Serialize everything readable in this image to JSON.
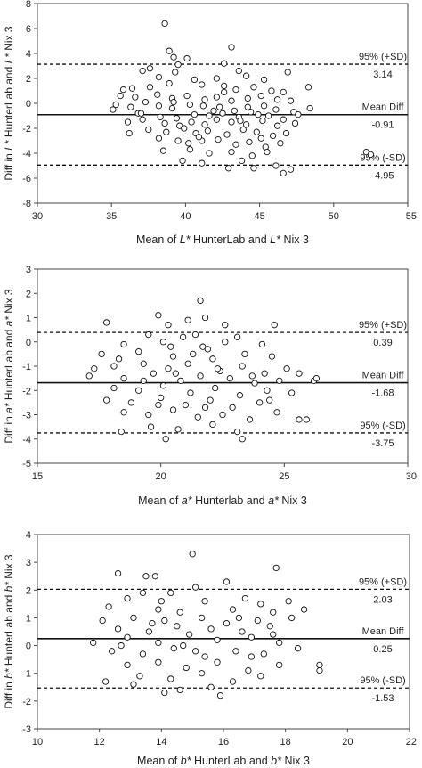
{
  "chart_data": [
    {
      "type": "scatter",
      "xlabel_parts": [
        "Mean of ",
        "L*",
        " HunterLab and ",
        "L*",
        " Nix 3"
      ],
      "ylabel_parts": [
        "Diff in ",
        "L*",
        " HunterLab and ",
        "L*",
        " Nix 3"
      ],
      "xlim": [
        30,
        55
      ],
      "ylim": [
        -8,
        8
      ],
      "xticks": [
        30,
        35,
        40,
        45,
        50,
        55
      ],
      "yticks": [
        -8,
        -6,
        -4,
        -2,
        0,
        2,
        4,
        6,
        8
      ],
      "reference_lines": [
        {
          "label": "95% (+SD)",
          "value": 3.14,
          "value_label": "3.14",
          "style": "dashed"
        },
        {
          "label": "Mean Diff",
          "value": -0.91,
          "value_label": "-0.91",
          "style": "solid"
        },
        {
          "label": "95% (-SD)",
          "value": -4.95,
          "value_label": "-4.95",
          "style": "dashed"
        }
      ],
      "points": [
        [
          38.6,
          6.4
        ],
        [
          43.1,
          4.5
        ],
        [
          38.9,
          4.2
        ],
        [
          39.2,
          3.7
        ],
        [
          40.1,
          3.6
        ],
        [
          39.5,
          3.1
        ],
        [
          42.6,
          3.2
        ],
        [
          37.6,
          2.8
        ],
        [
          37.1,
          2.6
        ],
        [
          39.3,
          2.5
        ],
        [
          43.6,
          2.6
        ],
        [
          46.9,
          2.5
        ],
        [
          44.1,
          2.2
        ],
        [
          38.2,
          2.1
        ],
        [
          40.6,
          1.9
        ],
        [
          42.1,
          2.0
        ],
        [
          45.3,
          1.9
        ],
        [
          35.8,
          1.1
        ],
        [
          36.4,
          1.2
        ],
        [
          37.6,
          1.3
        ],
        [
          38.9,
          1.6
        ],
        [
          41.1,
          1.5
        ],
        [
          42.6,
          1.4
        ],
        [
          43.4,
          1.1
        ],
        [
          44.6,
          1.3
        ],
        [
          45.8,
          1.0
        ],
        [
          46.6,
          0.9
        ],
        [
          48.3,
          1.3
        ],
        [
          35.6,
          0.6
        ],
        [
          36.6,
          0.5
        ],
        [
          38.1,
          0.7
        ],
        [
          39.1,
          0.4
        ],
        [
          40.1,
          0.6
        ],
        [
          41.3,
          0.3
        ],
        [
          42.1,
          0.5
        ],
        [
          43.1,
          0.2
        ],
        [
          44.2,
          0.4
        ],
        [
          45.1,
          0.6
        ],
        [
          46.2,
          0.3
        ],
        [
          47.1,
          0.2
        ],
        [
          35.3,
          -0.1
        ],
        [
          36.3,
          -0.3
        ],
        [
          37.3,
          0.1
        ],
        [
          38.2,
          -0.2
        ],
        [
          39.1,
          -0.4
        ],
        [
          40.3,
          -0.1
        ],
        [
          41.2,
          -0.2
        ],
        [
          42.3,
          -0.3
        ],
        [
          43.3,
          -0.6
        ],
        [
          44.2,
          -0.3
        ],
        [
          45.3,
          -0.2
        ],
        [
          46.1,
          -0.5
        ],
        [
          47.3,
          -0.7
        ],
        [
          48.4,
          -0.4
        ],
        [
          35.1,
          -0.5
        ],
        [
          36.8,
          -0.8
        ],
        [
          38.3,
          -1.1
        ],
        [
          39.4,
          -1.2
        ],
        [
          40.6,
          -0.9
        ],
        [
          41.6,
          -1.0
        ],
        [
          42.5,
          -0.8
        ],
        [
          43.6,
          -1.1
        ],
        [
          44.4,
          -0.7
        ],
        [
          45.6,
          -1.0
        ],
        [
          46.6,
          -1.3
        ],
        [
          47.6,
          -0.9
        ],
        [
          36.1,
          -1.5
        ],
        [
          37.1,
          -1.3
        ],
        [
          38.6,
          -1.6
        ],
        [
          39.6,
          -1.8
        ],
        [
          40.4,
          -1.5
        ],
        [
          41.3,
          -1.7
        ],
        [
          42.1,
          -1.3
        ],
        [
          43.1,
          -1.5
        ],
        [
          44.1,
          -1.7
        ],
        [
          45.2,
          -1.4
        ],
        [
          46.2,
          -1.8
        ],
        [
          47.4,
          -1.6
        ],
        [
          37.5,
          -2.1
        ],
        [
          38.7,
          -2.3
        ],
        [
          39.9,
          -2.0
        ],
        [
          40.7,
          -2.4
        ],
        [
          41.5,
          -2.2
        ],
        [
          42.8,
          -2.5
        ],
        [
          43.9,
          -2.1
        ],
        [
          44.8,
          -2.3
        ],
        [
          45.9,
          -2.6
        ],
        [
          46.8,
          -2.4
        ],
        [
          38.2,
          -2.8
        ],
        [
          39.5,
          -3.0
        ],
        [
          40.2,
          -3.2
        ],
        [
          41.1,
          -3.0
        ],
        [
          42.2,
          -2.9
        ],
        [
          43.4,
          -3.3
        ],
        [
          44.3,
          -3.1
        ],
        [
          45.4,
          -3.5
        ],
        [
          46.4,
          -3.2
        ],
        [
          38.5,
          -3.8
        ],
        [
          40.3,
          -3.7
        ],
        [
          41.6,
          -4.0
        ],
        [
          43.1,
          -3.9
        ],
        [
          44.5,
          -4.2
        ],
        [
          45.5,
          -3.9
        ],
        [
          39.8,
          -4.6
        ],
        [
          41.1,
          -4.8
        ],
        [
          43.8,
          -4.6
        ],
        [
          44.6,
          -5.2
        ],
        [
          46.1,
          -5.0
        ],
        [
          46.6,
          -5.6
        ],
        [
          47.1,
          -5.3
        ],
        [
          42.9,
          -5.2
        ],
        [
          52.2,
          -3.9
        ],
        [
          52.5,
          -4.1
        ],
        [
          36.2,
          -2.4
        ],
        [
          37.0,
          -0.8
        ],
        [
          42.6,
          0.9
        ],
        [
          44.9,
          -0.9
        ],
        [
          41.9,
          -0.6
        ],
        [
          43.7,
          -1.4
        ],
        [
          40.9,
          -2.7
        ],
        [
          45.1,
          -2.8
        ],
        [
          39.2,
          0.1
        ]
      ]
    },
    {
      "type": "scatter",
      "xlabel_parts": [
        "Mean of ",
        "a*",
        " Hunterlab and ",
        "a*",
        " Nix 3"
      ],
      "ylabel_parts": [
        "Diff in ",
        "a*",
        " HunterLab and ",
        "a*",
        " Nix 3"
      ],
      "xlim": [
        15,
        30
      ],
      "ylim": [
        -5,
        3
      ],
      "xticks": [
        15,
        20,
        25,
        30
      ],
      "xtick_labels": [
        "15",
        "20",
        "25",
        "30"
      ],
      "yticks": [
        -5,
        -4,
        -3,
        -2,
        -1,
        0,
        1,
        2,
        3
      ],
      "reference_lines": [
        {
          "label": "95% (+SD)",
          "value": 0.39,
          "value_label": "0.39",
          "style": "dashed"
        },
        {
          "label": "Mean Diff",
          "value": -1.68,
          "value_label": "-1.68",
          "style": "solid"
        },
        {
          "label": "95% (-SD)",
          "value": -3.75,
          "value_label": "-3.75",
          "style": "dashed"
        }
      ],
      "points": [
        [
          21.6,
          1.7
        ],
        [
          19.9,
          1.1
        ],
        [
          21.1,
          0.9
        ],
        [
          21.8,
          1.0
        ],
        [
          17.8,
          0.8
        ],
        [
          20.3,
          0.7
        ],
        [
          22.6,
          0.7
        ],
        [
          24.6,
          0.7
        ],
        [
          19.5,
          0.3
        ],
        [
          20.9,
          0.2
        ],
        [
          21.4,
          0.3
        ],
        [
          23.1,
          0.2
        ],
        [
          18.5,
          -0.1
        ],
        [
          20.1,
          0.0
        ],
        [
          21.7,
          -0.2
        ],
        [
          22.6,
          0.0
        ],
        [
          24.1,
          -0.1
        ],
        [
          17.6,
          -0.5
        ],
        [
          18.3,
          -0.7
        ],
        [
          19.1,
          -0.4
        ],
        [
          20.5,
          -0.6
        ],
        [
          21.3,
          -0.5
        ],
        [
          22.1,
          -0.7
        ],
        [
          23.4,
          -0.5
        ],
        [
          24.5,
          -0.6
        ],
        [
          17.3,
          -1.1
        ],
        [
          18.1,
          -1.0
        ],
        [
          19.3,
          -0.9
        ],
        [
          20.3,
          -1.1
        ],
        [
          21.1,
          -0.9
        ],
        [
          22.4,
          -1.2
        ],
        [
          23.3,
          -1.0
        ],
        [
          24.2,
          -1.3
        ],
        [
          25.1,
          -1.1
        ],
        [
          25.6,
          -1.3
        ],
        [
          17.1,
          -1.4
        ],
        [
          18.5,
          -1.5
        ],
        [
          19.7,
          -1.3
        ],
        [
          20.8,
          -1.6
        ],
        [
          21.6,
          -1.4
        ],
        [
          22.8,
          -1.5
        ],
        [
          23.8,
          -1.7
        ],
        [
          24.8,
          -1.6
        ],
        [
          18.1,
          -1.9
        ],
        [
          19.1,
          -2.0
        ],
        [
          20.1,
          -1.8
        ],
        [
          21.2,
          -2.1
        ],
        [
          22.2,
          -1.9
        ],
        [
          23.2,
          -2.2
        ],
        [
          24.3,
          -2.0
        ],
        [
          25.3,
          -2.1
        ],
        [
          17.8,
          -2.4
        ],
        [
          18.8,
          -2.5
        ],
        [
          20.0,
          -2.3
        ],
        [
          21.0,
          -2.6
        ],
        [
          22.0,
          -2.4
        ],
        [
          22.9,
          -2.7
        ],
        [
          24.0,
          -2.5
        ],
        [
          18.5,
          -2.9
        ],
        [
          19.5,
          -3.0
        ],
        [
          20.5,
          -2.8
        ],
        [
          21.5,
          -3.1
        ],
        [
          22.5,
          -3.0
        ],
        [
          23.6,
          -3.2
        ],
        [
          24.7,
          -2.9
        ],
        [
          25.6,
          -3.2
        ],
        [
          25.9,
          -3.2
        ],
        [
          19.6,
          -3.5
        ],
        [
          20.7,
          -3.6
        ],
        [
          22.1,
          -3.4
        ],
        [
          23.1,
          -3.7
        ],
        [
          18.4,
          -3.7
        ],
        [
          20.2,
          -4.0
        ],
        [
          23.3,
          -4.0
        ],
        [
          26.2,
          -1.6
        ],
        [
          26.3,
          -1.5
        ],
        [
          21.9,
          -0.3
        ],
        [
          22.3,
          -1.1
        ],
        [
          20.6,
          -1.3
        ],
        [
          19.9,
          -2.6
        ],
        [
          21.8,
          -2.7
        ],
        [
          23.7,
          -1.4
        ],
        [
          19.3,
          -1.6
        ],
        [
          24.4,
          -2.4
        ],
        [
          20.4,
          -0.2
        ]
      ]
    },
    {
      "type": "scatter",
      "xlabel_parts": [
        "Mean of ",
        "b*",
        " HunterLab and ",
        "b*",
        " Nix 3"
      ],
      "ylabel_parts": [
        "Diff in ",
        "b*",
        " HunterLab and ",
        "b*",
        " Nix 3"
      ],
      "xlim": [
        10,
        22
      ],
      "ylim": [
        -3,
        4
      ],
      "xticks": [
        10,
        12,
        14,
        16,
        18,
        20,
        22
      ],
      "yticks": [
        -3,
        -2,
        -1,
        0,
        1,
        2,
        3,
        4
      ],
      "reference_lines": [
        {
          "label": "95% (+SD)",
          "value": 2.03,
          "value_label": "2.03",
          "style": "dashed"
        },
        {
          "label": "Mean Diff",
          "value": 0.25,
          "value_label": "0.25",
          "style": "solid"
        },
        {
          "label": "95% (-SD)",
          "value": -1.53,
          "value_label": "-1.53",
          "style": "dashed"
        }
      ],
      "points": [
        [
          15.0,
          3.3
        ],
        [
          17.7,
          2.8
        ],
        [
          12.6,
          2.6
        ],
        [
          13.5,
          2.5
        ],
        [
          13.8,
          2.5
        ],
        [
          16.1,
          2.3
        ],
        [
          15.1,
          2.1
        ],
        [
          14.3,
          1.9
        ],
        [
          13.4,
          1.9
        ],
        [
          12.9,
          1.7
        ],
        [
          15.4,
          1.6
        ],
        [
          16.7,
          1.7
        ],
        [
          17.2,
          1.5
        ],
        [
          18.1,
          1.6
        ],
        [
          12.3,
          1.4
        ],
        [
          13.9,
          1.3
        ],
        [
          14.6,
          1.2
        ],
        [
          16.3,
          1.3
        ],
        [
          17.6,
          1.2
        ],
        [
          18.6,
          1.3
        ],
        [
          12.1,
          0.9
        ],
        [
          13.1,
          1.0
        ],
        [
          14.1,
          0.9
        ],
        [
          15.3,
          1.0
        ],
        [
          16.1,
          0.8
        ],
        [
          17.1,
          0.9
        ],
        [
          18.2,
          1.0
        ],
        [
          12.6,
          0.6
        ],
        [
          13.6,
          0.5
        ],
        [
          14.5,
          0.7
        ],
        [
          15.6,
          0.6
        ],
        [
          16.6,
          0.5
        ],
        [
          17.5,
          0.7
        ],
        [
          11.8,
          0.1
        ],
        [
          12.9,
          0.3
        ],
        [
          13.9,
          0.1
        ],
        [
          14.9,
          0.4
        ],
        [
          15.8,
          0.2
        ],
        [
          16.9,
          0.3
        ],
        [
          17.8,
          0.1
        ],
        [
          12.4,
          -0.2
        ],
        [
          13.4,
          -0.3
        ],
        [
          14.4,
          -0.1
        ],
        [
          15.4,
          -0.4
        ],
        [
          16.4,
          -0.2
        ],
        [
          17.3,
          -0.3
        ],
        [
          18.4,
          -0.1
        ],
        [
          12.9,
          -0.7
        ],
        [
          13.9,
          -0.6
        ],
        [
          14.8,
          -0.8
        ],
        [
          15.8,
          -0.6
        ],
        [
          16.8,
          -0.9
        ],
        [
          17.8,
          -0.7
        ],
        [
          13.3,
          -1.1
        ],
        [
          14.3,
          -1.2
        ],
        [
          15.3,
          -1.0
        ],
        [
          16.3,
          -1.3
        ],
        [
          17.2,
          -1.1
        ],
        [
          12.2,
          -1.3
        ],
        [
          13.1,
          -1.4
        ],
        [
          14.6,
          -1.6
        ],
        [
          15.6,
          -1.5
        ],
        [
          14.1,
          -1.7
        ],
        [
          19.1,
          -0.7
        ],
        [
          19.1,
          -0.9
        ],
        [
          14.7,
          0.0
        ],
        [
          15.1,
          -0.2
        ],
        [
          13.7,
          0.8
        ],
        [
          16.5,
          1.0
        ],
        [
          12.7,
          0.0
        ],
        [
          15.9,
          -1.8
        ],
        [
          17.6,
          0.4
        ],
        [
          14.0,
          1.6
        ],
        [
          16.9,
          -0.4
        ]
      ]
    }
  ]
}
